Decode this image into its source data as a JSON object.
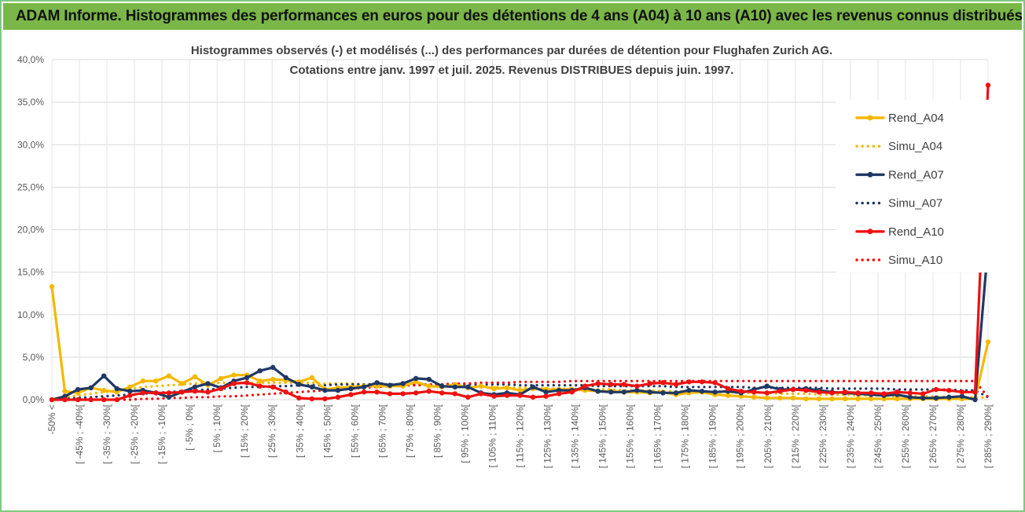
{
  "header": {
    "title": "ADAM Informe. Histogrammes des performances en euros pour des détentions de 4 ans (A04) à 10 ans (A10) avec les revenus connus distribués"
  },
  "chart_data": {
    "type": "line",
    "title": "Histogrammes observés (-) et modélisés (...) des performances par durées de détention pour Flughafen Zurich AG.",
    "subtitle": "Cotations entre janv. 1997 et juil. 2025. Revenus DISTRIBUES depuis juin. 1997.",
    "xlabel": "",
    "ylabel": "",
    "ylim": [
      0,
      40
    ],
    "y_ticks": [
      "0,0%",
      "5,0%",
      "10,0%",
      "15,0%",
      "20,0%",
      "25,0%",
      "30,0%",
      "35,0%",
      "40,0%"
    ],
    "grid": true,
    "legend_position": "right",
    "x_tick_labels": [
      "-50% <",
      "[ -45% ; -40%[",
      "[ -35% ; -30%[",
      "[ -25% ; -20%[",
      "[ -15% ; -10%[",
      "[ -5% ; 0%[",
      "[ 5% ; 10%[",
      "[ 15% ; 20%[",
      "[ 25% ; 30%[",
      "[ 35% ; 40%[",
      "[ 45% ; 50%[",
      "[ 55% ; 60%[",
      "[ 65% ; 70%[",
      "[ 75% ; 80%[",
      "[ 85% ; 90%[",
      "[ 95% ; 100%[",
      "[ 105% ; 110%[",
      "[ 115% ; 120%[",
      "[ 125% ; 130%[",
      "[ 135% ; 140%[",
      "[ 145% ; 150%[",
      "[ 155% ; 160%[",
      "[ 165% ; 170%[",
      "[ 175% ; 180%[",
      "[ 185% ; 190%[",
      "[ 195% ; 200%[",
      "[ 205% ; 210%[",
      "[ 215% ; 220%[",
      "[ 225% ; 230%[",
      "[ 235% ; 240%[",
      "[ 245% ; 250%[",
      "[ 255% ; 260%[",
      "[ 265% ; 270%[",
      "[ 275% ; 280%[",
      "[ 285% ; 290%["
    ],
    "series": [
      {
        "name": "Rend_A04",
        "color": "#f5b800",
        "style": "solid",
        "marker": true,
        "values": [
          13.3,
          1.0,
          0.8,
          1.4,
          1.1,
          0.9,
          1.5,
          2.2,
          2.2,
          2.8,
          1.9,
          2.7,
          1.7,
          2.5,
          2.9,
          2.9,
          2.2,
          2.4,
          2.3,
          2.1,
          2.6,
          1.2,
          1.4,
          1.5,
          1.6,
          1.6,
          1.6,
          1.6,
          2.1,
          1.6,
          1.5,
          1.8,
          1.4,
          1.6,
          1.3,
          1.4,
          1.1,
          1.3,
          1.2,
          1.2,
          1.2,
          1.1,
          1.0,
          1.0,
          0.9,
          0.9,
          0.8,
          0.9,
          0.6,
          0.8,
          0.9,
          0.6,
          0.5,
          0.4,
          0.3,
          0.2,
          0.2,
          0.2,
          0.1,
          0.1,
          0.1,
          0.1,
          0.1,
          0.1,
          0.1,
          0.1,
          0.1,
          0.1,
          0.1,
          0.1,
          0.1,
          0.1,
          6.8
        ]
      },
      {
        "name": "Simu_A04",
        "color": "#f5b800",
        "style": "dotted",
        "marker": false,
        "values": [
          0.1,
          0.3,
          0.5,
          0.7,
          0.9,
          1.1,
          1.3,
          1.5,
          1.6,
          1.7,
          1.8,
          1.9,
          1.9,
          2.0,
          2.0,
          2.0,
          2.0,
          2.0,
          2.0,
          2.0,
          2.0,
          1.9,
          1.9,
          1.9,
          1.8,
          1.8,
          1.8,
          1.7,
          1.7,
          1.7,
          1.6,
          1.6,
          1.6,
          1.5,
          1.5,
          1.4,
          1.4,
          1.4,
          1.3,
          1.3,
          1.3,
          1.2,
          1.2,
          1.2,
          1.1,
          1.1,
          1.1,
          1.0,
          1.0,
          1.0,
          0.9,
          0.9,
          0.9,
          0.8,
          0.8,
          0.8,
          0.7,
          0.7,
          0.7,
          0.6,
          0.6,
          0.6,
          0.5,
          0.5,
          0.5,
          0.4,
          0.4,
          0.4,
          0.4,
          0.3,
          0.3,
          0.3,
          0.2
        ]
      },
      {
        "name": "Rend_A07",
        "color": "#1f3864",
        "style": "solid",
        "marker": true,
        "values": [
          0.0,
          0.4,
          1.2,
          1.4,
          2.8,
          1.3,
          1.0,
          1.1,
          0.8,
          0.3,
          0.9,
          1.5,
          1.9,
          1.4,
          2.2,
          2.6,
          3.4,
          3.8,
          2.6,
          1.8,
          1.5,
          1.1,
          1.1,
          1.3,
          1.5,
          2.0,
          1.7,
          1.9,
          2.5,
          2.4,
          1.6,
          1.5,
          1.5,
          0.8,
          0.6,
          0.8,
          0.6,
          1.5,
          0.9,
          1.1,
          1.1,
          1.4,
          1.0,
          0.9,
          0.9,
          1.1,
          0.9,
          0.8,
          0.8,
          1.1,
          1.0,
          0.9,
          1.0,
          0.8,
          1.2,
          1.6,
          1.2,
          1.2,
          1.3,
          1.1,
          0.9,
          0.8,
          0.7,
          0.6,
          0.5,
          0.6,
          0.3,
          0.2,
          0.2,
          0.3,
          0.4,
          0.0,
          18.1
        ]
      },
      {
        "name": "Simu_A07",
        "color": "#1f3864",
        "style": "dotted",
        "marker": false,
        "values": [
          0.0,
          0.1,
          0.2,
          0.3,
          0.4,
          0.5,
          0.6,
          0.7,
          0.8,
          0.9,
          1.0,
          1.1,
          1.2,
          1.3,
          1.4,
          1.5,
          1.5,
          1.6,
          1.6,
          1.7,
          1.7,
          1.7,
          1.8,
          1.8,
          1.8,
          1.8,
          1.8,
          1.8,
          1.8,
          1.8,
          1.8,
          1.8,
          1.8,
          1.8,
          1.8,
          1.8,
          1.7,
          1.7,
          1.7,
          1.7,
          1.7,
          1.7,
          1.6,
          1.6,
          1.6,
          1.6,
          1.6,
          1.6,
          1.5,
          1.5,
          1.5,
          1.5,
          1.5,
          1.5,
          1.4,
          1.4,
          1.4,
          1.4,
          1.4,
          1.4,
          1.3,
          1.3,
          1.3,
          1.3,
          1.3,
          1.2,
          1.2,
          1.2,
          1.2,
          1.2,
          1.1,
          1.1,
          0.3
        ]
      },
      {
        "name": "Rend_A10",
        "color": "#ee1111",
        "style": "solid",
        "marker": true,
        "values": [
          0.0,
          0.0,
          0.0,
          0.0,
          0.0,
          0.0,
          0.5,
          0.8,
          0.8,
          0.8,
          0.9,
          1.0,
          0.9,
          1.3,
          1.9,
          2.0,
          1.6,
          1.5,
          0.9,
          0.2,
          0.1,
          0.1,
          0.3,
          0.6,
          0.9,
          0.9,
          0.7,
          0.7,
          0.8,
          1.0,
          0.8,
          0.7,
          0.3,
          0.7,
          0.4,
          0.5,
          0.5,
          0.3,
          0.4,
          0.7,
          0.9,
          1.6,
          1.9,
          1.8,
          1.8,
          1.6,
          1.9,
          2.0,
          1.8,
          2.1,
          2.1,
          2.0,
          1.3,
          1.0,
          0.9,
          0.8,
          1.0,
          1.2,
          1.1,
          0.9,
          0.8,
          0.9,
          0.8,
          0.8,
          0.7,
          0.9,
          0.8,
          0.7,
          1.2,
          1.1,
          0.9,
          0.9,
          37.0
        ]
      },
      {
        "name": "Simu_A10",
        "color": "#ee1111",
        "style": "dotted",
        "marker": false,
        "values": [
          0.0,
          0.0,
          0.0,
          0.0,
          0.0,
          0.0,
          0.0,
          0.1,
          0.1,
          0.2,
          0.2,
          0.3,
          0.3,
          0.4,
          0.4,
          0.5,
          0.6,
          0.7,
          0.8,
          0.9,
          1.0,
          1.1,
          1.2,
          1.3,
          1.4,
          1.5,
          1.6,
          1.7,
          1.7,
          1.8,
          1.8,
          1.9,
          1.9,
          2.0,
          2.0,
          2.0,
          2.1,
          2.1,
          2.1,
          2.1,
          2.2,
          2.2,
          2.2,
          2.2,
          2.2,
          2.2,
          2.2,
          2.2,
          2.2,
          2.2,
          2.2,
          2.2,
          2.2,
          2.2,
          2.2,
          2.2,
          2.2,
          2.2,
          2.2,
          2.2,
          2.2,
          2.2,
          2.2,
          2.2,
          2.2,
          2.2,
          2.2,
          2.2,
          2.2,
          2.2,
          2.2,
          2.2,
          0.3
        ]
      }
    ]
  }
}
